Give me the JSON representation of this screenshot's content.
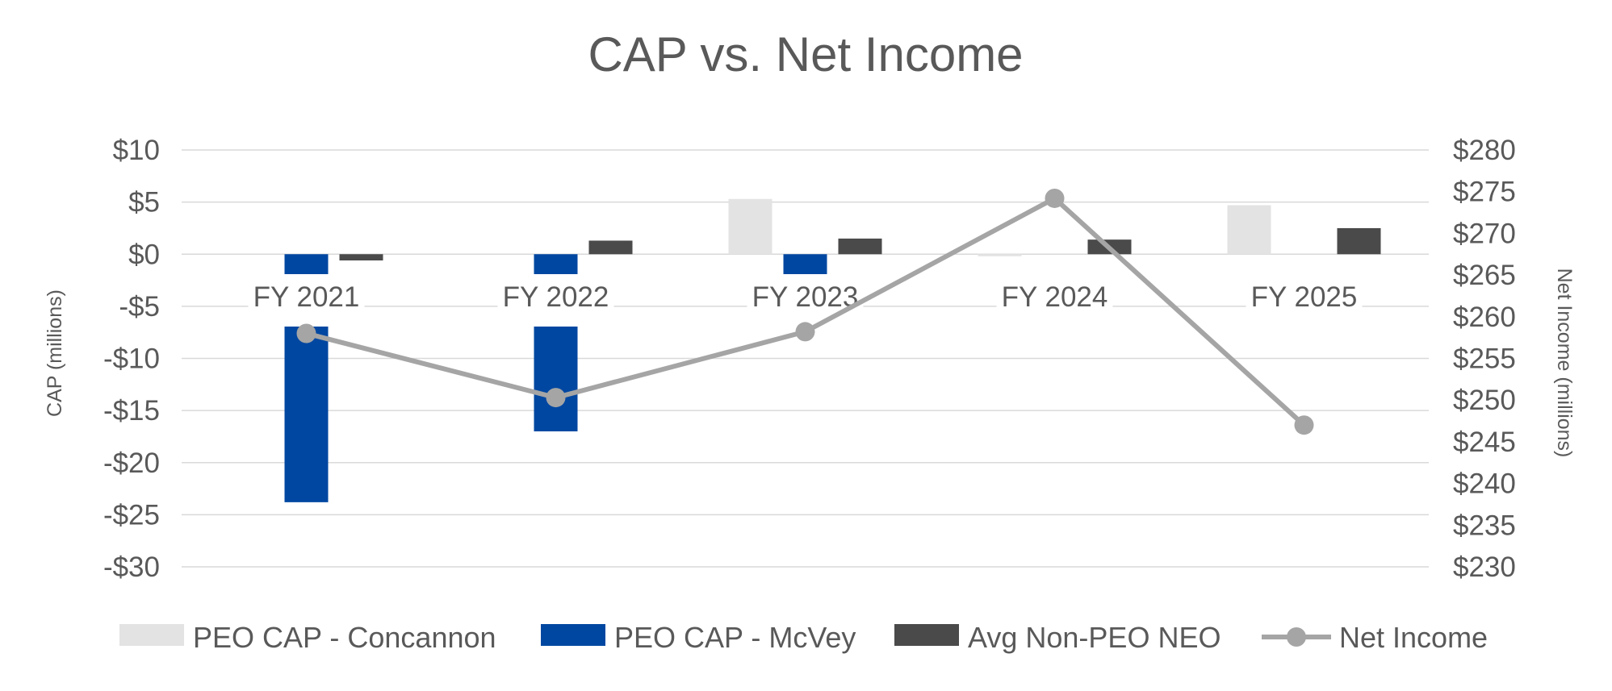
{
  "chart_data": {
    "type": "bar",
    "title": "CAP vs. Net Income",
    "categories": [
      "FY 2021",
      "FY 2022",
      "FY 2023",
      "FY 2024",
      "FY 2025"
    ],
    "y_left": {
      "label": "CAP (millions)",
      "range": [
        -30,
        10
      ],
      "ticks": [
        10,
        5,
        0,
        -5,
        -10,
        -15,
        -20,
        -25,
        -30
      ],
      "tick_labels": [
        "$10",
        "$5",
        "$0",
        "-$5",
        "-$10",
        "-$15",
        "-$20",
        "-$25",
        "-$30"
      ]
    },
    "y_right": {
      "label": "Net Income (millions)",
      "range": [
        230,
        280
      ],
      "ticks": [
        280,
        275,
        270,
        265,
        260,
        255,
        250,
        245,
        240,
        235,
        230
      ],
      "tick_labels": [
        "$280",
        "$275",
        "$270",
        "$265",
        "$260",
        "$255",
        "$250",
        "$245",
        "$240",
        "$235",
        "$230"
      ]
    },
    "grid": true,
    "legend_position": "bottom",
    "series": [
      {
        "name": "PEO CAP - Concannon",
        "type": "bar",
        "axis": "left",
        "color": "#e3e3e3",
        "values": [
          null,
          null,
          5.3,
          -0.2,
          4.7
        ]
      },
      {
        "name": "PEO CAP - McVey",
        "type": "bar",
        "axis": "left",
        "color": "#0047a1",
        "values": [
          -23.8,
          -17.0,
          -2.4,
          null,
          null
        ]
      },
      {
        "name": "Avg Non-PEO NEO",
        "type": "bar",
        "axis": "left",
        "color": "#4a4a4a",
        "values": [
          -0.6,
          1.3,
          1.5,
          1.4,
          2.5
        ]
      },
      {
        "name": "Net Income",
        "type": "line",
        "axis": "right",
        "color": "#a5a5a5",
        "values": [
          258.0,
          250.3,
          258.2,
          274.2,
          247.0
        ]
      }
    ]
  }
}
